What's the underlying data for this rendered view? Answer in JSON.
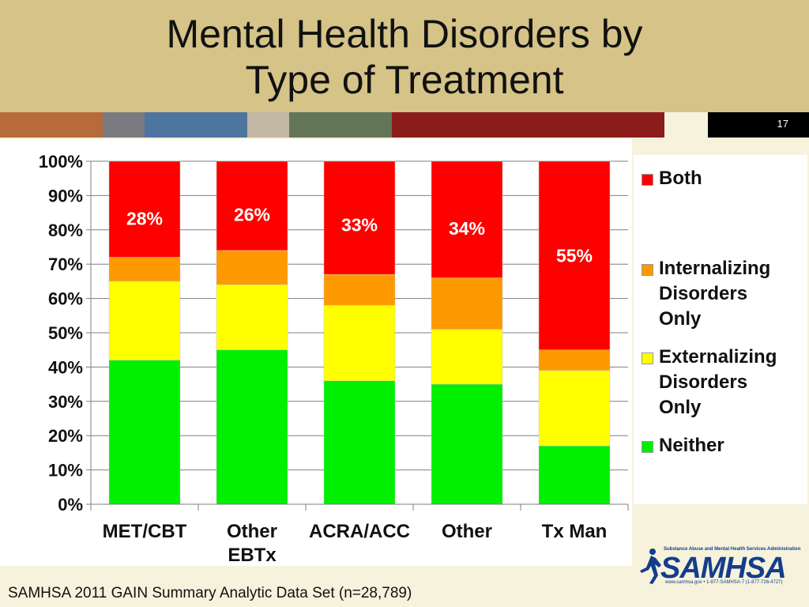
{
  "slide": {
    "title_line1": "Mental Health Disorders by",
    "title_line2": "Type of Treatment",
    "slide_number": "17",
    "source": "SAMHSA 2011 GAIN Summary Analytic Data Set (n=28,789)",
    "logo": {
      "tagline": "Substance Abuse and Mental Health Services Administration",
      "wordmark": "SAMHSA",
      "url": "www.samhsa.gov • 1-877-SAMHSA-7 (1-877-726-4727)"
    },
    "stripe_colors": [
      "#b76b3c",
      "#7a7b80",
      "#4e74a0",
      "#c3b8a4",
      "#637558",
      "#8c1c1c",
      "#f7f2dc"
    ]
  },
  "chart_data": {
    "type": "bar",
    "stacked": true,
    "title": "",
    "xlabel": "",
    "ylabel": "",
    "ylim": [
      0,
      100
    ],
    "yticks": [
      "0%",
      "10%",
      "20%",
      "30%",
      "40%",
      "50%",
      "60%",
      "70%",
      "80%",
      "90%",
      "100%"
    ],
    "categories": [
      [
        "MET/CBT"
      ],
      [
        "Other",
        "EBTx"
      ],
      [
        "ACRA/ACC"
      ],
      [
        "Other"
      ],
      [
        "Tx Man"
      ]
    ],
    "series": [
      {
        "name": "Neither",
        "color": "#00f000",
        "values": [
          42,
          45,
          36,
          35,
          17
        ]
      },
      {
        "name": "Externalizing Disorders Only",
        "color": "#ffff00",
        "values": [
          23,
          19,
          22,
          16,
          22
        ]
      },
      {
        "name": "Internalizing Disorders Only",
        "color": "#ff9900",
        "values": [
          7,
          10,
          9,
          15,
          6
        ]
      },
      {
        "name": "Both",
        "color": "#ff0000",
        "values": [
          28,
          26,
          33,
          34,
          55
        ]
      }
    ],
    "data_labels": [
      "28%",
      "26%",
      "33%",
      "34%",
      "55%"
    ],
    "legend": {
      "placement": "right",
      "items": [
        {
          "lines": [
            "Both"
          ],
          "color": "#ff0000"
        },
        {
          "lines": [
            "Internalizing",
            "Disorders",
            "Only"
          ],
          "color": "#ff9900"
        },
        {
          "lines": [
            "Externalizing",
            "Disorders",
            "Only"
          ],
          "color": "#ffff00"
        },
        {
          "lines": [
            "Neither"
          ],
          "color": "#00f000"
        }
      ]
    },
    "grid": true
  }
}
